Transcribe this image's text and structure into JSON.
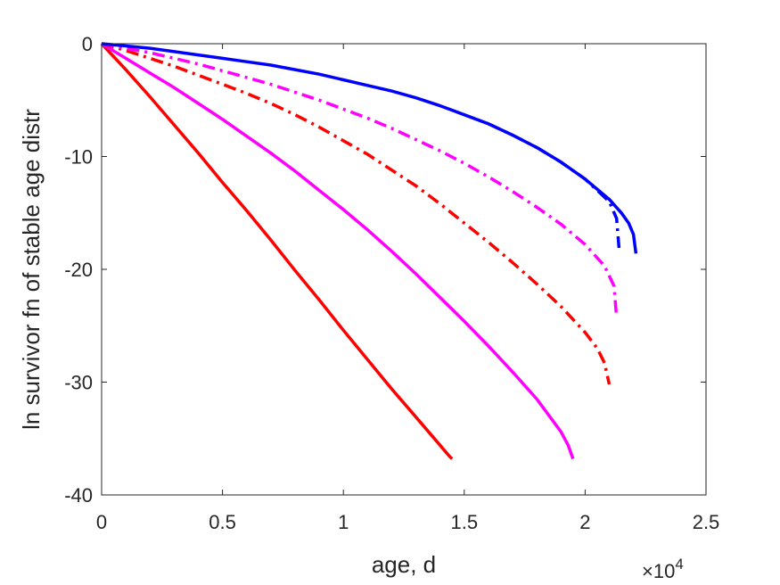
{
  "chart_data": {
    "type": "line",
    "title": "",
    "xlabel": "age, d",
    "ylabel": "ln survivor fn of stable age distr",
    "x_exponent_label": "×10",
    "x_exponent_power": "4",
    "xlim": [
      0,
      2.5
    ],
    "ylim": [
      -40,
      0
    ],
    "x_scale": 10000,
    "xticks": [
      0,
      0.5,
      1,
      1.5,
      2,
      2.5
    ],
    "xtick_labels": [
      "0",
      "0.5",
      "1",
      "1.5",
      "2",
      "2.5"
    ],
    "yticks": [
      -40,
      -30,
      -20,
      -10,
      0
    ],
    "ytick_labels": [
      "-40",
      "-30",
      "-20",
      "-10",
      "0"
    ],
    "grid": false,
    "legend": "none",
    "series": [
      {
        "color": "#ff0000",
        "style": "solid",
        "x": [
          0,
          0.1,
          0.2,
          0.3,
          0.4,
          0.5,
          0.6,
          0.7,
          0.8,
          0.9,
          1.0,
          1.1,
          1.2,
          1.3,
          1.4,
          1.42,
          1.44,
          1.45
        ],
        "y": [
          0,
          -2.3,
          -4.7,
          -7.2,
          -9.7,
          -12.3,
          -14.8,
          -17.4,
          -20.1,
          -22.7,
          -25.4,
          -28.0,
          -30.6,
          -33.1,
          -35.6,
          -36.1,
          -36.6,
          -36.8
        ]
      },
      {
        "color": "#ff00ff",
        "style": "solid",
        "x": [
          0,
          0.1,
          0.2,
          0.3,
          0.4,
          0.5,
          0.6,
          0.7,
          0.8,
          0.9,
          1.0,
          1.1,
          1.2,
          1.3,
          1.4,
          1.5,
          1.6,
          1.7,
          1.8,
          1.9,
          1.93,
          1.95
        ],
        "y": [
          0,
          -1.3,
          -2.6,
          -3.9,
          -5.3,
          -6.7,
          -8.2,
          -9.7,
          -11.3,
          -13.0,
          -14.7,
          -16.5,
          -18.4,
          -20.4,
          -22.5,
          -24.6,
          -26.8,
          -29.1,
          -31.5,
          -34.4,
          -35.6,
          -36.8
        ]
      },
      {
        "color": "#ff0000",
        "style": "dashdot",
        "x": [
          0,
          0.1,
          0.2,
          0.3,
          0.4,
          0.5,
          0.6,
          0.7,
          0.8,
          0.9,
          1.0,
          1.1,
          1.2,
          1.3,
          1.4,
          1.5,
          1.6,
          1.7,
          1.8,
          1.9,
          2.0,
          2.05,
          2.08,
          2.1
        ],
        "y": [
          0,
          -0.6,
          -1.3,
          -2.0,
          -2.8,
          -3.6,
          -4.4,
          -5.3,
          -6.3,
          -7.4,
          -8.6,
          -9.8,
          -11.2,
          -12.6,
          -14.2,
          -15.9,
          -17.6,
          -19.4,
          -21.3,
          -23.3,
          -25.6,
          -27.0,
          -28.3,
          -30.2
        ]
      },
      {
        "color": "#ff00ff",
        "style": "dashdot",
        "x": [
          0,
          0.1,
          0.2,
          0.3,
          0.4,
          0.5,
          0.6,
          0.7,
          0.8,
          0.9,
          1.0,
          1.1,
          1.2,
          1.3,
          1.4,
          1.5,
          1.6,
          1.7,
          1.8,
          1.9,
          2.0,
          2.08,
          2.12,
          2.13
        ],
        "y": [
          0,
          -0.4,
          -0.8,
          -1.3,
          -1.8,
          -2.4,
          -3.0,
          -3.6,
          -4.3,
          -5.0,
          -5.8,
          -6.6,
          -7.5,
          -8.5,
          -9.5,
          -10.6,
          -11.8,
          -13.1,
          -14.5,
          -16.0,
          -17.8,
          -19.7,
          -21.5,
          -24.3
        ]
      },
      {
        "color": "#0000ff",
        "style": "solid",
        "x": [
          0,
          0.1,
          0.2,
          0.3,
          0.4,
          0.5,
          0.6,
          0.7,
          0.8,
          0.9,
          1.0,
          1.1,
          1.2,
          1.3,
          1.4,
          1.5,
          1.6,
          1.7,
          1.8,
          1.9,
          2.0,
          2.1,
          2.15,
          2.18,
          2.2,
          2.21
        ],
        "y": [
          0,
          -0.2,
          -0.4,
          -0.7,
          -1.0,
          -1.3,
          -1.6,
          -1.9,
          -2.3,
          -2.7,
          -3.2,
          -3.7,
          -4.2,
          -4.8,
          -5.5,
          -6.3,
          -7.1,
          -8.1,
          -9.2,
          -10.5,
          -12.0,
          -13.8,
          -15.0,
          -15.9,
          -16.9,
          -18.6
        ]
      },
      {
        "color": "#0000ff",
        "style": "dashdot",
        "x": [
          1.6,
          1.7,
          1.8,
          1.9,
          2.0,
          2.1,
          2.13,
          2.14
        ],
        "y": [
          -7.1,
          -8.1,
          -9.2,
          -10.5,
          -12.0,
          -14.0,
          -15.5,
          -18.1
        ]
      }
    ]
  }
}
